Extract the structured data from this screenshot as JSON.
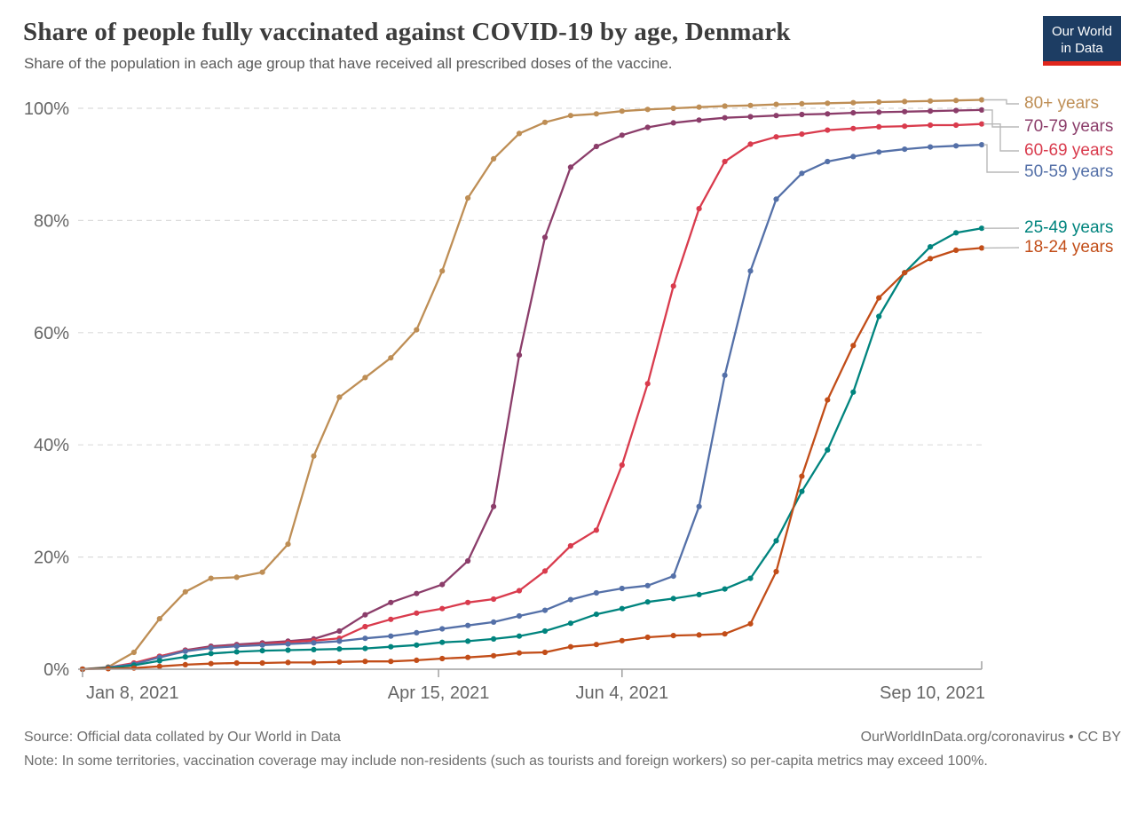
{
  "header": {
    "title": "Share of people fully vaccinated against COVID-19 by age, Denmark",
    "subtitle": "Share of the population in each age group that have received all prescribed doses of the vaccine."
  },
  "logo": {
    "line1": "Our World",
    "line2": "in Data",
    "bg_color": "#1d3d63",
    "accent_color": "#e0261c"
  },
  "footer": {
    "source": "Source: Official data collated by Our World in Data",
    "attribution": "OurWorldInData.org/coronavirus • CC BY",
    "note": "Note: In some territories, vaccination coverage may include non-residents (such as tourists and foreign workers) so per-capita metrics may exceed 100%."
  },
  "chart_data": {
    "type": "line",
    "x_unit": "date",
    "dates": [
      "Jan 8, 2021",
      "Jan 15, 2021",
      "Jan 22, 2021",
      "Jan 29, 2021",
      "Feb 5, 2021",
      "Feb 12, 2021",
      "Feb 19, 2021",
      "Feb 26, 2021",
      "Mar 5, 2021",
      "Mar 12, 2021",
      "Mar 19, 2021",
      "Mar 26, 2021",
      "Apr 2, 2021",
      "Apr 9, 2021",
      "Apr 16, 2021",
      "Apr 23, 2021",
      "Apr 30, 2021",
      "May 7, 2021",
      "May 14, 2021",
      "May 21, 2021",
      "May 28, 2021",
      "Jun 4, 2021",
      "Jun 11, 2021",
      "Jun 18, 2021",
      "Jun 25, 2021",
      "Jul 2, 2021",
      "Jul 9, 2021",
      "Jul 16, 2021",
      "Jul 23, 2021",
      "Jul 30, 2021",
      "Aug 6, 2021",
      "Aug 13, 2021",
      "Aug 20, 2021",
      "Aug 27, 2021",
      "Sep 3, 2021",
      "Sep 10, 2021"
    ],
    "series": [
      {
        "name": "80+ years",
        "color": "#BE8E55",
        "values": [
          0,
          0.4,
          3,
          9,
          13.8,
          16.2,
          16.4,
          17.3,
          22.3,
          38,
          48.5,
          52,
          55.5,
          60.5,
          71,
          84,
          91,
          95.5,
          97.5,
          98.7,
          99,
          99.5,
          99.8,
          100,
          100.2,
          100.4,
          100.5,
          100.7,
          100.8,
          100.9,
          101,
          101.1,
          101.2,
          101.3,
          101.4,
          101.5
        ]
      },
      {
        "name": "70-79 years",
        "color": "#8B3D6A",
        "values": [
          0,
          0.2,
          1,
          2.3,
          3.4,
          4.1,
          4.4,
          4.7,
          5,
          5.4,
          6.8,
          9.7,
          11.9,
          13.5,
          15.1,
          19.3,
          29,
          56,
          77,
          89.5,
          93.2,
          95.2,
          96.6,
          97.4,
          97.9,
          98.3,
          98.5,
          98.7,
          98.9,
          99,
          99.2,
          99.3,
          99.4,
          99.5,
          99.6,
          99.7
        ]
      },
      {
        "name": "60-69 years",
        "color": "#D93B4D",
        "values": [
          0,
          0.3,
          1.1,
          2.3,
          3.3,
          3.9,
          4.2,
          4.5,
          4.8,
          5.1,
          5.5,
          7.6,
          8.9,
          10,
          10.8,
          11.9,
          12.5,
          14,
          17.5,
          22,
          24.8,
          36.4,
          50.9,
          68.3,
          82.1,
          90.5,
          93.6,
          94.9,
          95.4,
          96.1,
          96.4,
          96.7,
          96.8,
          97,
          97,
          97.2
        ]
      },
      {
        "name": "50-59 years",
        "color": "#5470A8",
        "values": [
          0,
          0.3,
          0.9,
          2.1,
          3.2,
          3.8,
          4.1,
          4.3,
          4.5,
          4.7,
          5,
          5.5,
          5.9,
          6.5,
          7.2,
          7.8,
          8.4,
          9.5,
          10.5,
          12.4,
          13.6,
          14.4,
          14.9,
          16.6,
          29,
          52.4,
          71,
          83.8,
          88.4,
          90.5,
          91.4,
          92.2,
          92.7,
          93.1,
          93.3,
          93.5
        ]
      },
      {
        "name": "25-49 years",
        "color": "#00847E",
        "values": [
          0,
          0.2,
          0.7,
          1.5,
          2.2,
          2.8,
          3.1,
          3.3,
          3.4,
          3.5,
          3.6,
          3.7,
          4,
          4.3,
          4.8,
          5,
          5.4,
          5.9,
          6.8,
          8.2,
          9.8,
          10.8,
          12,
          12.6,
          13.3,
          14.3,
          16.2,
          22.9,
          31.7,
          39.1,
          49.4,
          62.9,
          70.7,
          75.3,
          77.8,
          78.6
        ]
      },
      {
        "name": "18-24 years",
        "color": "#C24D18",
        "values": [
          0,
          0.1,
          0.2,
          0.5,
          0.8,
          1,
          1.1,
          1.1,
          1.2,
          1.2,
          1.3,
          1.4,
          1.4,
          1.6,
          1.9,
          2.1,
          2.4,
          2.9,
          3,
          4,
          4.4,
          5.1,
          5.7,
          6,
          6.1,
          6.3,
          8.1,
          17.4,
          34.4,
          48,
          57.7,
          66.2,
          70.7,
          73.2,
          74.7,
          75.1
        ]
      }
    ],
    "yticks": [
      0,
      20,
      40,
      60,
      80,
      100
    ],
    "ytick_suffix": "%",
    "xticks": [
      {
        "label": "Jan 8, 2021",
        "day": 0
      },
      {
        "label": "Apr 15, 2021",
        "day": 97
      },
      {
        "label": "Jun 4, 2021",
        "day": 147
      },
      {
        "label": "Sep 10, 2021",
        "day": 245
      }
    ],
    "total_days": 245,
    "ylim": [
      0,
      101.5
    ],
    "grid": "horizontal-dashed",
    "legend_position": "right",
    "title": "Share of people fully vaccinated against COVID-19 by age, Denmark",
    "xlabel": "",
    "ylabel": ""
  }
}
